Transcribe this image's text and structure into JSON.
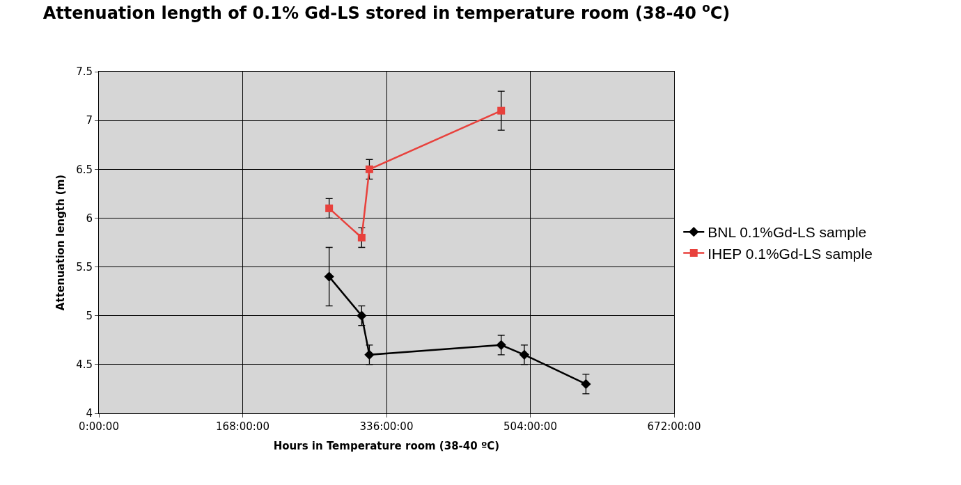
{
  "chart_data": {
    "type": "line",
    "title": "Attenuation length of 0.1% Gd-LS stored in temperature room (38-40 $^{o}$C)",
    "xlabel": "Hours in Temperature room (38-40 ºC)",
    "ylabel": "Attenuation length (m)",
    "xlim": [
      0,
      672
    ],
    "xticks": [
      {
        "value": 0,
        "label": "0:00:00"
      },
      {
        "value": 168,
        "label": "168:00:00"
      },
      {
        "value": 336,
        "label": "336:00:00"
      },
      {
        "value": 504,
        "label": "504:00:00"
      },
      {
        "value": 672,
        "label": "672:00:00"
      }
    ],
    "ylim": [
      4,
      7.5
    ],
    "yticks": [
      4,
      4.5,
      5,
      5.5,
      6,
      6.5,
      7,
      7.5
    ],
    "grid": true,
    "legend": "right",
    "line_style": "solid",
    "series": [
      {
        "name": "BNL 0.1%Gd-LS sample",
        "color": "#000000",
        "marker": "diamond",
        "x": [
          269,
          307,
          316,
          470,
          497,
          569
        ],
        "values": [
          5.4,
          5.0,
          4.6,
          4.7,
          4.6,
          4.3
        ],
        "errors": [
          0.3,
          0.1,
          0.1,
          0.1,
          0.1,
          0.1
        ]
      },
      {
        "name": "IHEP 0.1%Gd-LS sample",
        "color": "#e8413c",
        "marker": "square",
        "x": [
          269,
          307,
          316,
          470
        ],
        "values": [
          6.1,
          5.8,
          6.5,
          7.1
        ],
        "errors": [
          0.1,
          0.1,
          0.1,
          0.2
        ]
      }
    ]
  }
}
